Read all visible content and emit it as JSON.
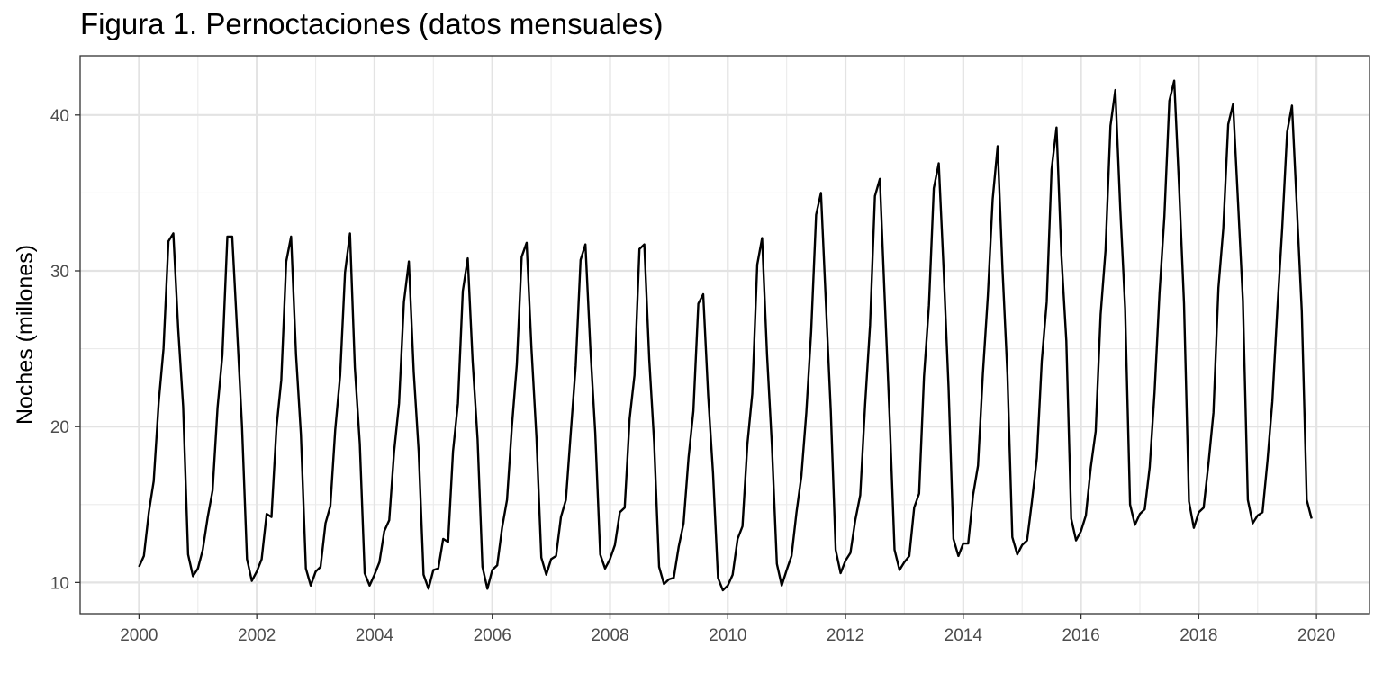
{
  "chart_data": {
    "type": "line",
    "title": "Figura 1. Pernoctaciones (datos mensuales)",
    "xlabel": "",
    "ylabel": "Noches (millones)",
    "xlim": [
      1999.0,
      2020.9
    ],
    "ylim": [
      8.0,
      43.8
    ],
    "x_ticks": [
      2000,
      2002,
      2004,
      2006,
      2008,
      2010,
      2012,
      2014,
      2016,
      2018,
      2020
    ],
    "y_ticks": [
      10,
      20,
      30,
      40
    ],
    "grid": true,
    "legend": "none",
    "line_color": "#000000",
    "series": [
      {
        "start_year": 2000,
        "frequency": "monthly",
        "values": [
          11.0,
          11.7,
          14.5,
          16.5,
          21.5,
          25.0,
          31.9,
          32.4,
          26.2,
          21.3,
          11.8,
          10.4,
          10.9,
          12.1,
          14.2,
          15.9,
          21.2,
          24.6,
          32.2,
          32.2,
          26.1,
          20.0,
          11.5,
          10.1,
          10.7,
          11.5,
          14.4,
          14.2,
          19.9,
          23.0,
          30.6,
          32.2,
          24.6,
          19.5,
          10.9,
          9.8,
          10.7,
          11.0,
          13.8,
          14.9,
          19.8,
          23.3,
          29.9,
          32.4,
          23.8,
          18.9,
          10.6,
          9.8,
          10.5,
          11.3,
          13.3,
          14.0,
          18.4,
          21.5,
          28.0,
          30.6,
          23.5,
          18.4,
          10.5,
          9.6,
          10.8,
          10.9,
          12.8,
          12.6,
          18.4,
          21.5,
          28.7,
          30.8,
          24.2,
          19.2,
          11.0,
          9.6,
          10.8,
          11.1,
          13.5,
          15.3,
          20.0,
          24.0,
          30.9,
          31.8,
          25.0,
          19.3,
          11.6,
          10.5,
          11.5,
          11.7,
          14.2,
          15.3,
          19.6,
          23.9,
          30.7,
          31.7,
          25.0,
          19.6,
          11.8,
          10.9,
          11.5,
          12.4,
          14.5,
          14.8,
          20.5,
          23.3,
          31.4,
          31.7,
          24.3,
          19.0,
          11.0,
          9.9,
          10.2,
          10.3,
          12.3,
          13.8,
          18.0,
          21.0,
          27.9,
          28.5,
          22.0,
          17.0,
          10.3,
          9.5,
          9.8,
          10.5,
          12.8,
          13.6,
          18.9,
          22.1,
          30.4,
          32.1,
          24.6,
          18.8,
          11.2,
          9.8,
          10.8,
          11.7,
          14.5,
          16.8,
          20.9,
          26.1,
          33.6,
          35.0,
          28.0,
          21.0,
          12.1,
          10.6,
          11.4,
          11.9,
          14.0,
          15.6,
          21.4,
          26.5,
          34.8,
          35.9,
          28.2,
          20.5,
          12.1,
          10.8,
          11.3,
          11.7,
          14.8,
          15.7,
          23.2,
          27.8,
          35.3,
          36.9,
          30.1,
          22.5,
          12.8,
          11.7,
          12.5,
          12.5,
          15.6,
          17.5,
          23.4,
          28.4,
          34.6,
          38.0,
          30.1,
          23.3,
          12.9,
          11.8,
          12.4,
          12.7,
          15.2,
          18.0,
          24.2,
          28.0,
          36.5,
          39.2,
          31.0,
          25.5,
          14.1,
          12.7,
          13.3,
          14.3,
          17.4,
          19.7,
          27.2,
          31.3,
          39.3,
          41.6,
          34.0,
          27.6,
          15.0,
          13.7,
          14.4,
          14.7,
          17.4,
          22.2,
          28.6,
          33.5,
          40.9,
          42.2,
          35.3,
          27.9,
          15.2,
          13.5,
          14.5,
          14.8,
          17.7,
          20.9,
          28.9,
          32.7,
          39.4,
          40.7,
          34.4,
          28.1,
          15.3,
          13.8,
          14.3,
          14.5,
          17.8,
          21.6,
          27.5,
          32.7,
          38.9,
          40.6,
          34.0,
          27.4,
          15.3,
          14.1
        ]
      }
    ]
  }
}
